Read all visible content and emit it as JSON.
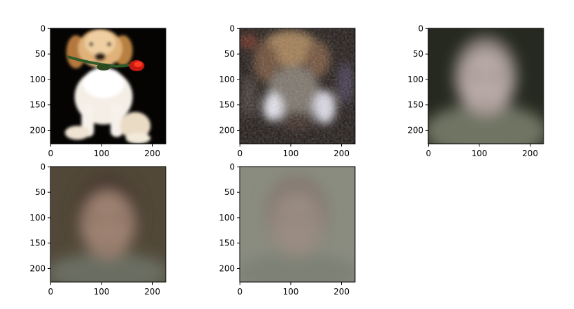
{
  "figure": {
    "panels": [
      {
        "content": "photo of a golden retriever puppy holding a red rose in its mouth on black background",
        "x_ticks": [
          "0",
          "100",
          "200"
        ],
        "y_ticks": [
          "0",
          "50",
          "100",
          "150",
          "200"
        ]
      },
      {
        "content": "blurry noisy reconstruction of the puppy image",
        "x_ticks": [
          "0",
          "100",
          "200"
        ],
        "y_ticks": [
          "0",
          "50",
          "100",
          "150",
          "200"
        ]
      },
      {
        "content": "blurry averaged face on dark background",
        "x_ticks": [
          "0",
          "100",
          "200"
        ],
        "y_ticks": [
          "0",
          "50",
          "100",
          "150",
          "200"
        ]
      },
      {
        "content": "blurry averaged face on brownish background",
        "x_ticks": [
          "0",
          "100",
          "200"
        ],
        "y_ticks": [
          "0",
          "50",
          "100",
          "150",
          "200"
        ]
      },
      {
        "content": "very faint averaged face on grey-green background",
        "x_ticks": [
          "0",
          "100",
          "200"
        ],
        "y_ticks": [
          "0",
          "50",
          "100",
          "150",
          "200"
        ]
      }
    ]
  }
}
